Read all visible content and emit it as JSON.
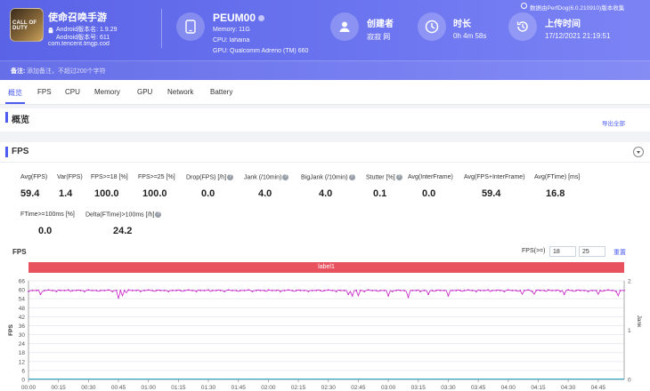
{
  "header": {
    "game_name": "使命召唤手游",
    "game_icon_text": "CALL OF DUTY",
    "android_version_label": "Android版本名: 1.9.29",
    "android_code_label": "Android版本号: 611",
    "package": "com.tencent.tmgp.cod",
    "device": {
      "name": "PEUM00",
      "memory": "Memory: 11G",
      "cpu": "CPU: lahaina",
      "gpu": "GPU: Qualcomm Adreno (TM) 660"
    },
    "creator": {
      "title": "创建者",
      "value": "寂寂 网"
    },
    "duration": {
      "title": "时长",
      "value": "0h 4m 58s"
    },
    "upload": {
      "title": "上传时间",
      "value": "17/12/2021 21:19:51"
    },
    "top_right_info": "数据由PerfDog(6.0.210910)版本收集",
    "remark_label": "备注:",
    "remark_placeholder": "添加备注，不超过200个字符"
  },
  "tabs": [
    "概览",
    "FPS",
    "CPU",
    "Memory",
    "GPU",
    "Network",
    "Battery"
  ],
  "overview": {
    "title": "概览",
    "export_label": "导出全部"
  },
  "fps_section": {
    "title": "FPS",
    "stats": [
      {
        "label": "Avg(FPS)",
        "value": "59.4",
        "help": false
      },
      {
        "label": "Var(FPS)",
        "value": "1.4",
        "help": false
      },
      {
        "label": "FPS>=18 [%]",
        "value": "100.0",
        "help": false
      },
      {
        "label": "FPS>=25 [%]",
        "value": "100.0",
        "help": false
      },
      {
        "label": "Drop(FPS) [/h]",
        "value": "0.0",
        "help": true
      },
      {
        "label": "Jank (/10min)",
        "value": "4.0",
        "help": true
      },
      {
        "label": "BigJank (/10min)",
        "value": "4.0",
        "help": true
      },
      {
        "label": "Stutter [%]",
        "value": "0.1",
        "help": true
      },
      {
        "label": "Avg(InterFrame)",
        "value": "0.0",
        "help": false
      },
      {
        "label": "Avg(FPS+InterFrame)",
        "value": "59.4",
        "help": false
      },
      {
        "label": "Avg(FTime) [ms]",
        "value": "16.8",
        "help": false
      },
      {
        "label": "FTime>=100ms [%]",
        "value": "0.0",
        "help": false
      },
      {
        "label": "Delta(FTime)>100ms [/h]",
        "value": "24.2",
        "help": true
      }
    ]
  },
  "chart_panel": {
    "title": "FPS",
    "fps_filter_label": "FPS(>=)",
    "fps_min_1": "18",
    "fps_min_2": "25",
    "reset_label": "重置",
    "label_bar": "label1"
  },
  "chart_data": {
    "type": "line",
    "title": "FPS",
    "ylabel": "FPS",
    "y2label": "Jank",
    "ylim": [
      0,
      66
    ],
    "y_ticks": [
      0,
      6,
      12,
      18,
      24,
      30,
      36,
      42,
      48,
      54,
      60,
      66
    ],
    "y2lim": [
      0,
      2
    ],
    "y2_ticks": [
      0,
      1,
      2
    ],
    "x_ticks": [
      "00:00",
      "00:15",
      "00:30",
      "00:45",
      "01:00",
      "01:15",
      "01:30",
      "01:45",
      "02:00",
      "02:15",
      "02:30",
      "02:45",
      "03:00",
      "03:15",
      "03:30",
      "03:45",
      "04:00",
      "04:15",
      "04:30",
      "04:45"
    ],
    "duration_seconds": 298,
    "series": [
      {
        "name": "FPS",
        "color": "#cc33cc",
        "baseline": 59.5,
        "dips": [
          [
            6,
            57
          ],
          [
            45,
            54
          ],
          [
            47,
            56
          ],
          [
            49,
            58
          ],
          [
            160,
            57
          ],
          [
            162,
            56
          ],
          [
            165,
            56
          ],
          [
            180,
            56
          ],
          [
            190,
            55
          ],
          [
            200,
            57
          ],
          [
            210,
            56
          ],
          [
            247,
            57
          ],
          [
            253,
            57
          ],
          [
            268,
            57
          ],
          [
            285,
            57
          ],
          [
            295,
            56
          ]
        ]
      },
      {
        "name": "Jank",
        "color": "#2aa7c9",
        "axis": "right",
        "spikes": [
          [
            165,
            1.6
          ],
          [
            172,
            1.3
          ],
          [
            188,
            1.4
          ],
          [
            200,
            1.2
          ]
        ]
      }
    ],
    "grid": true
  }
}
